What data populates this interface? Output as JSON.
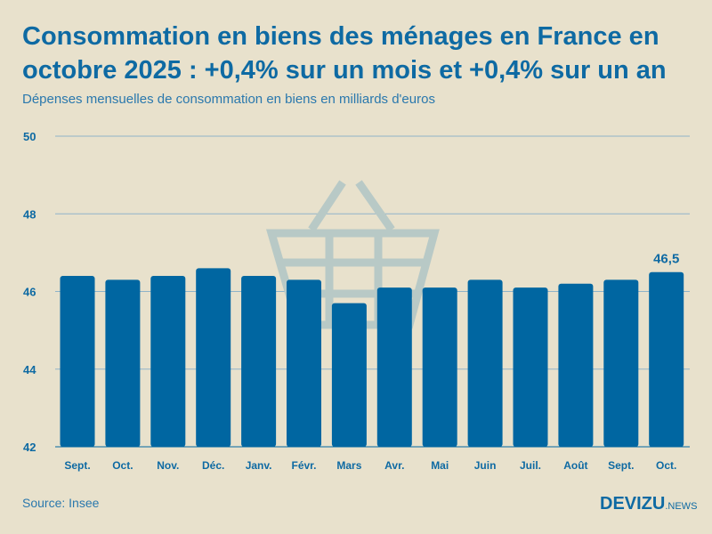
{
  "title": "Consommation en biens des ménages en France en octobre 2025 : +0,4% sur un mois et +0,4% sur un an",
  "subtitle": "Dépenses mensuelles de consommation en biens en milliards d'euros",
  "source": "Source: Insee",
  "logo": {
    "main": "DEVIZU",
    "suffix": ".NEWS"
  },
  "colors": {
    "bar": "#0066a1",
    "grid": "#8fb3c9",
    "text": "#0e6aa3",
    "background": "#e8e1cc",
    "basket": "#b8c9c6"
  },
  "chart_data": {
    "type": "bar",
    "categories": [
      "Sept.",
      "Oct.",
      "Nov.",
      "Déc.",
      "Janv.",
      "Févr.",
      "Mars",
      "Avr.",
      "Mai",
      "Juin",
      "Juil.",
      "Août",
      "Sept.",
      "Oct."
    ],
    "values": [
      46.4,
      46.3,
      46.4,
      46.6,
      46.4,
      46.3,
      45.7,
      46.1,
      46.1,
      46.3,
      46.1,
      46.2,
      46.3,
      46.5
    ],
    "ylim": [
      42,
      50
    ],
    "yticks": [
      "42",
      "44",
      "46",
      "48",
      "50"
    ],
    "grid": true,
    "data_labels": [
      {
        "index": 13,
        "text": "46,5"
      }
    ],
    "background_icon": "shopping-basket-icon"
  }
}
